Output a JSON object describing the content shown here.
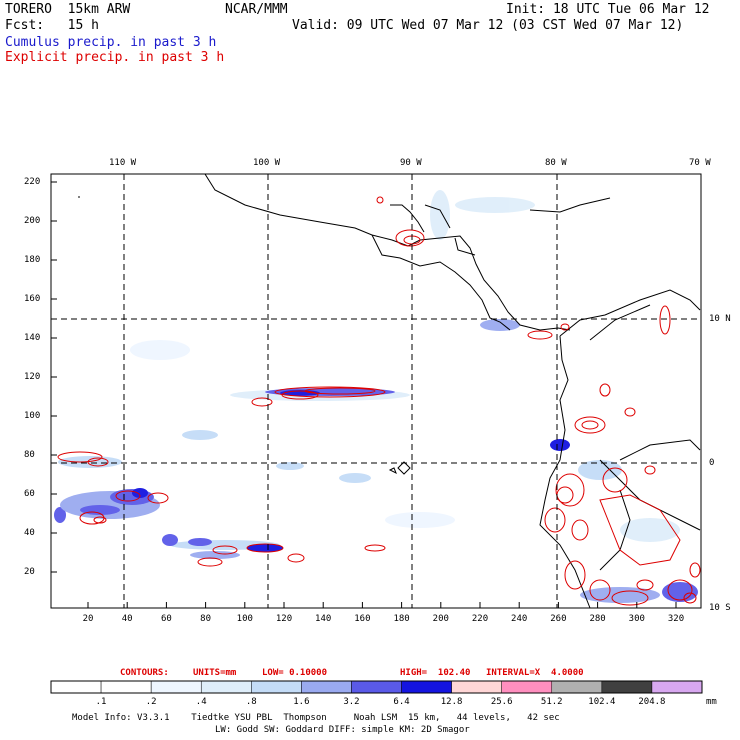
{
  "header": {
    "model": "TORERO  15km ARW",
    "org": "NCAR/MMM",
    "init": "Init: 18 UTC Tue 06 Mar 12",
    "fcst": "Fcst:   15 h",
    "valid": "Valid: 09 UTC Wed 07 Mar 12 (03 CST Wed 07 Mar 12)",
    "field1": "Cumulus precip. in past 3 h",
    "field2": "Explicit precip. in past 3 h"
  },
  "colors": {
    "cumulus": "#1a1acc",
    "explicit": "#dd0000"
  },
  "map": {
    "top_labels": [
      "110 W",
      "100 W",
      "90 W",
      "80 W",
      "70 W"
    ],
    "right_labels": [
      "10 N",
      "0",
      "10 S"
    ],
    "y_ticks": [
      "20",
      "40",
      "60",
      "80",
      "100",
      "120",
      "140",
      "160",
      "180",
      "200",
      "220"
    ],
    "x_ticks": [
      "20",
      "40",
      "60",
      "80",
      "100",
      "120",
      "140",
      "160",
      "180",
      "200",
      "220",
      "240",
      "260",
      "280",
      "300",
      "320"
    ]
  },
  "contours": {
    "label": "CONTOURS:",
    "units": "UNITS=mm",
    "low": "LOW= 0.10000",
    "high": "HIGH=  102.40",
    "interval": "INTERVAL=X  4.0000"
  },
  "colorbar": {
    "unit": "mm",
    "boundaries": [
      ".1",
      ".2",
      ".4",
      ".8",
      "1.6",
      "3.2",
      "6.4",
      "12.8",
      "25.6",
      "51.2",
      "102.4",
      "204.8"
    ],
    "colors": [
      "#ffffff",
      "#ffffff",
      "#eef6ff",
      "#dfeefa",
      "#c4dcf7",
      "#9aaaf0",
      "#5a5ae8",
      "#1414e0",
      "#ffd6d6",
      "#ff8fbf",
      "#b0b0b0",
      "#404040",
      "#d8a8f0"
    ]
  },
  "footer": {
    "line1": "Model Info: V3.3.1    Tiedtke YSU PBL  Thompson     Noah LSM  15 km,   44 levels,   42 sec",
    "line2": "LW: Godd SW: Goddard DIFF: simple KM: 2D Smagor"
  }
}
